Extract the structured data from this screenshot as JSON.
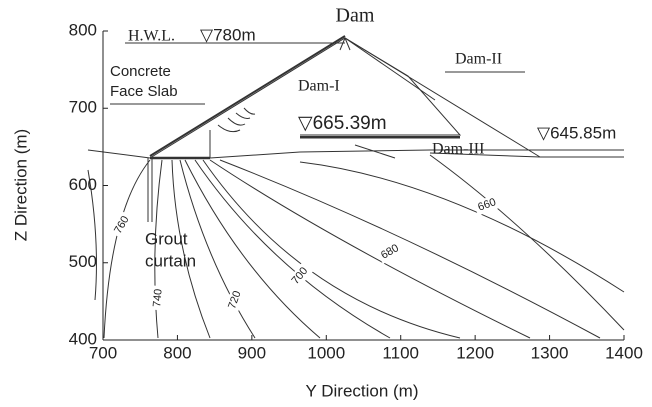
{
  "chart_data": {
    "type": "contour",
    "xlabel": "Y Direction (m)",
    "ylabel": "Z Direction (m)",
    "xlim": [
      700,
      1400
    ],
    "ylim": [
      400,
      800
    ],
    "xticks": [
      700,
      800,
      900,
      1000,
      1100,
      1200,
      1300,
      1400
    ],
    "yticks": [
      400,
      500,
      600,
      700,
      800
    ],
    "levels": [
      760,
      740,
      720,
      700,
      680,
      660
    ],
    "annotations": {
      "dam": "Dam",
      "hwl": "H.W.L.",
      "hwl_level": "▽780m",
      "dam_1": "Dam-I",
      "dam_2": "Dam-II",
      "dam_3": "Dam-III",
      "slab": [
        "Concrete",
        "Face Slab"
      ],
      "level_1": "▽665.39m",
      "level_2": "▽645.85m",
      "grout": [
        "Grout",
        "curtain"
      ]
    }
  }
}
